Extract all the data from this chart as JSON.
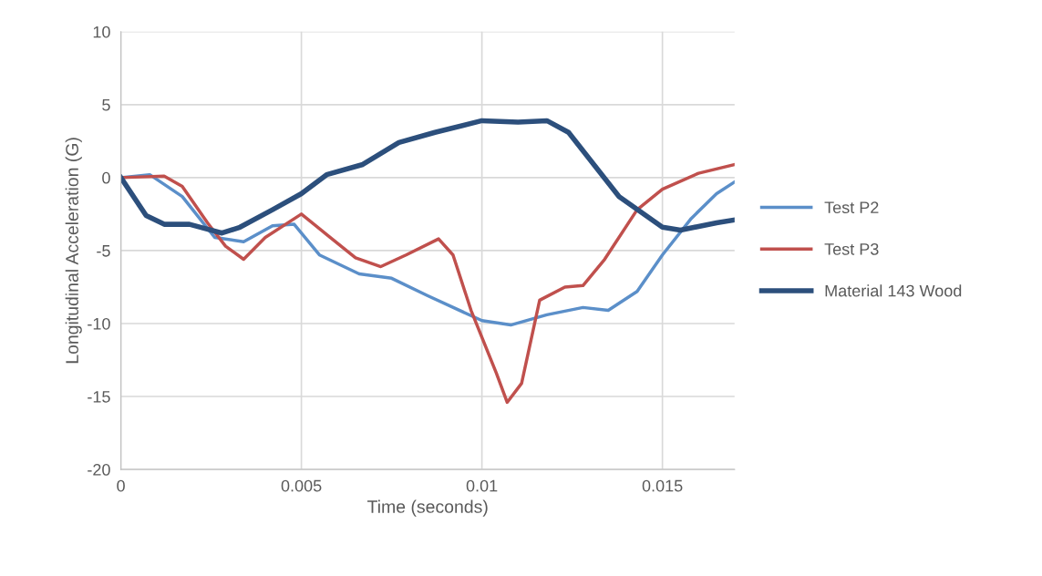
{
  "chart_data": {
    "type": "line",
    "xlabel": "Time (seconds)",
    "ylabel": "Longitudinal Acceleration (G)",
    "xlim": [
      0,
      0.017
    ],
    "xticks": [
      0,
      0.005,
      0.01,
      0.015
    ],
    "ylim": [
      -20,
      10
    ],
    "yticks": [
      -20,
      -15,
      -10,
      -5,
      0,
      5,
      10
    ],
    "grid": true,
    "legend": "right",
    "marker": "none",
    "line_style": "solid",
    "series": [
      {
        "name": "Test P2",
        "color": "#5b8fc9",
        "x": [
          0,
          0.0008,
          0.0017,
          0.0026,
          0.0034,
          0.0042,
          0.0048,
          0.0055,
          0.0066,
          0.0075,
          0.0085,
          0.01,
          0.0108,
          0.0118,
          0.0128,
          0.0135,
          0.0143,
          0.015,
          0.0158,
          0.0165,
          0.017
        ],
        "values": [
          0,
          0.2,
          -1.3,
          -4.1,
          -4.4,
          -3.3,
          -3.2,
          -5.3,
          -6.6,
          -6.9,
          -8.1,
          -9.8,
          -10.1,
          -9.4,
          -8.9,
          -9.1,
          -7.8,
          -5.3,
          -2.8,
          -1.1,
          -0.3
        ]
      },
      {
        "name": "Test P3",
        "color": "#c0504d",
        "x": [
          0,
          0.0012,
          0.0017,
          0.0024,
          0.0029,
          0.0034,
          0.004,
          0.005,
          0.0057,
          0.0065,
          0.0072,
          0.0079,
          0.0088,
          0.0092,
          0.0097,
          0.0104,
          0.0107,
          0.0111,
          0.0116,
          0.0123,
          0.0128,
          0.0134,
          0.0143,
          0.015,
          0.016,
          0.017
        ],
        "values": [
          0,
          0.1,
          -0.6,
          -3.1,
          -4.7,
          -5.6,
          -4.1,
          -2.5,
          -3.9,
          -5.5,
          -6.1,
          -5.3,
          -4.2,
          -5.3,
          -9.1,
          -13.4,
          -15.4,
          -14.1,
          -8.4,
          -7.5,
          -7.4,
          -5.6,
          -2.2,
          -0.8,
          0.3,
          0.9
        ]
      },
      {
        "name": "Material 143 Wood",
        "color": "#2c4f7c",
        "x": [
          0,
          0.0007,
          0.0012,
          0.0019,
          0.0028,
          0.0033,
          0.0042,
          0.005,
          0.0057,
          0.0067,
          0.0077,
          0.0087,
          0.01,
          0.011,
          0.0118,
          0.0124,
          0.0138,
          0.015,
          0.0155,
          0.0165,
          0.017
        ],
        "values": [
          0,
          -2.6,
          -3.2,
          -3.2,
          -3.8,
          -3.4,
          -2.2,
          -1.1,
          0.2,
          0.9,
          2.4,
          3.1,
          3.9,
          3.8,
          3.9,
          3.1,
          -1.3,
          -3.4,
          -3.6,
          -3.1,
          -2.9
        ]
      }
    ]
  }
}
